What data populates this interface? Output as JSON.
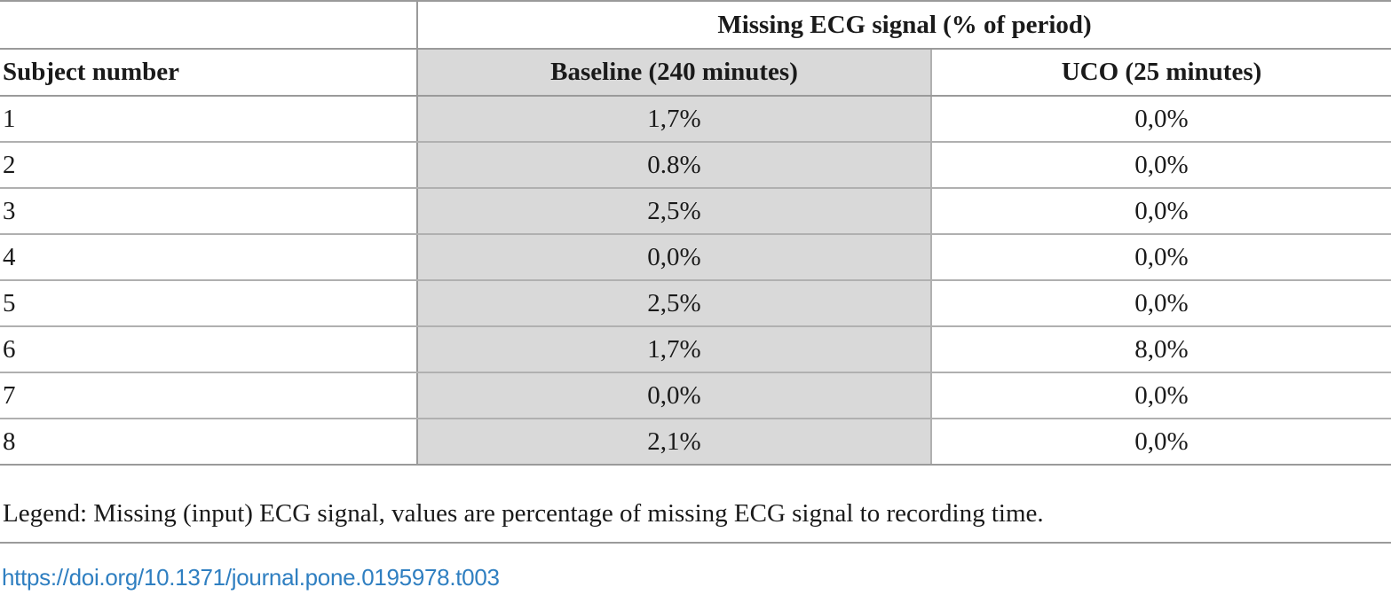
{
  "table": {
    "group_header": "Missing ECG signal (% of period)",
    "columns": [
      "Subject number",
      "Baseline (240 minutes)",
      "UCO (25 minutes)"
    ],
    "rows": [
      {
        "subject": "1",
        "baseline": "1,7%",
        "uco": "0,0%"
      },
      {
        "subject": "2",
        "baseline": "0.8%",
        "uco": "0,0%"
      },
      {
        "subject": "3",
        "baseline": "2,5%",
        "uco": "0,0%"
      },
      {
        "subject": "4",
        "baseline": "0,0%",
        "uco": "0,0%"
      },
      {
        "subject": "5",
        "baseline": "2,5%",
        "uco": "0,0%"
      },
      {
        "subject": "6",
        "baseline": "1,7%",
        "uco": "8,0%"
      },
      {
        "subject": "7",
        "baseline": "0,0%",
        "uco": "0,0%"
      },
      {
        "subject": "8",
        "baseline": "2,1%",
        "uco": "0,0%"
      }
    ]
  },
  "legend": "Legend: Missing (input) ECG signal, values are percentage of missing ECG signal to recording time.",
  "doi": "https://doi.org/10.1371/journal.pone.0195978.t003",
  "colors": {
    "shading": "#d9d9d9",
    "rule": "#9a9a9a",
    "link": "#2f7fc1"
  }
}
